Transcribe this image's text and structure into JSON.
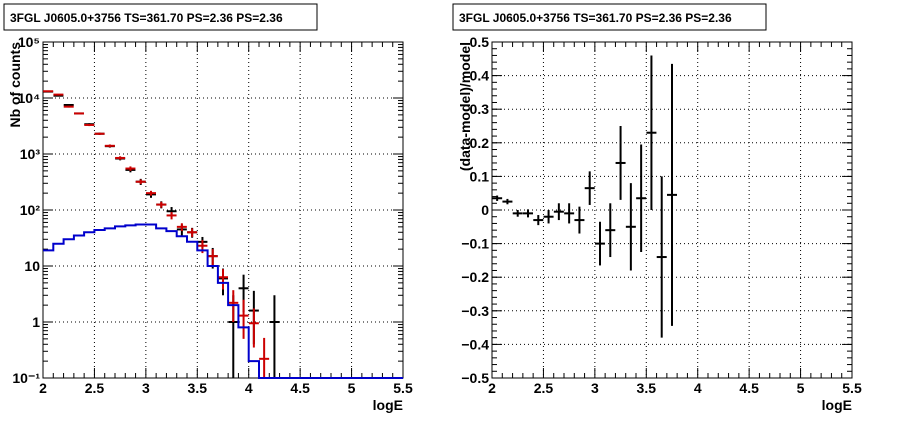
{
  "chart_data": [
    {
      "type": "line",
      "title": "3FGL J0605.0+3756 TS=361.70 PS=2.36 PS=2.36",
      "xlabel": "logE",
      "ylabel": "Nb of counts",
      "xlim": [
        2.0,
        5.5
      ],
      "ylim": [
        0.1,
        100000
      ],
      "yscale": "log",
      "grid": true,
      "x_ticks": [
        "2",
        "2.5",
        "3",
        "3.5",
        "4",
        "4.5",
        "5",
        "5.5"
      ],
      "y_ticks": [
        "10⁻¹",
        "1",
        "10",
        "10²",
        "10³",
        "10⁴",
        "10⁵"
      ],
      "series": [
        {
          "color": "#000000",
          "style": "errorbar",
          "x": [
            2.05,
            2.15,
            2.25,
            2.35,
            2.45,
            2.55,
            2.65,
            2.75,
            2.85,
            2.95,
            3.05,
            3.15,
            3.25,
            3.35,
            3.45,
            3.55,
            3.65,
            3.75,
            3.85,
            3.95,
            4.05,
            4.25
          ],
          "y": [
            13000,
            11000,
            7500,
            5300,
            3400,
            2300,
            1380,
            830,
            520,
            320,
            190,
            125,
            95,
            45,
            40,
            27,
            15,
            6,
            1,
            4,
            1.6,
            1
          ],
          "yerr_low": [
            400,
            300,
            250,
            200,
            150,
            100,
            80,
            60,
            50,
            40,
            25,
            18,
            18,
            10,
            8,
            6,
            6,
            3,
            0.9,
            2.5,
            1.2,
            0.9
          ],
          "yerr_high": [
            400,
            300,
            250,
            200,
            150,
            100,
            80,
            60,
            50,
            40,
            25,
            18,
            18,
            10,
            8,
            6,
            6,
            3,
            2,
            3,
            2,
            2
          ]
        },
        {
          "color": "#cc0000",
          "style": "errorbar",
          "x": [
            2.05,
            2.15,
            2.25,
            2.35,
            2.45,
            2.55,
            2.65,
            2.75,
            2.85,
            2.95,
            3.05,
            3.15,
            3.25,
            3.35,
            3.45,
            3.55,
            3.65,
            3.75,
            3.85,
            3.95,
            4.05,
            4.15
          ],
          "y": [
            13200,
            11500,
            7000,
            5300,
            3300,
            2300,
            1400,
            850,
            550,
            320,
            200,
            125,
            80,
            50,
            40,
            23,
            15,
            6.3,
            2.2,
            1.3,
            0.95,
            0.22
          ],
          "yerr_low": [
            350,
            300,
            250,
            200,
            150,
            100,
            80,
            60,
            50,
            30,
            20,
            15,
            12,
            8,
            7,
            6,
            5,
            2.5,
            1.2,
            0.8,
            0.6,
            0.15
          ],
          "yerr_high": [
            350,
            300,
            250,
            200,
            150,
            100,
            80,
            60,
            50,
            30,
            20,
            15,
            12,
            8,
            7,
            6,
            5,
            2.5,
            1.5,
            1.2,
            0.8,
            0.3
          ]
        },
        {
          "color": "#0000cc",
          "style": "step",
          "edges": [
            2.0,
            2.1,
            2.2,
            2.3,
            2.4,
            2.5,
            2.6,
            2.7,
            2.8,
            2.9,
            3.0,
            3.1,
            3.2,
            3.3,
            3.4,
            3.5,
            3.6,
            3.7,
            3.8,
            3.9,
            4.0,
            4.1,
            4.2,
            5.5
          ],
          "y": [
            19,
            25,
            30,
            35,
            40,
            44,
            47,
            51,
            53,
            55,
            55,
            47,
            42,
            34,
            27,
            19,
            10,
            5,
            2,
            0.8,
            0.2,
            0.1,
            0.1
          ]
        }
      ]
    },
    {
      "type": "scatter",
      "title": "3FGL J0605.0+3756 TS=361.70 PS=2.36 PS=2.36",
      "xlabel": "logE",
      "ylabel": "(data-model)/model",
      "xlim": [
        2.0,
        5.5
      ],
      "ylim": [
        -0.5,
        0.5
      ],
      "grid": true,
      "x_ticks": [
        "2",
        "2.5",
        "3",
        "3.5",
        "4",
        "4.5",
        "5",
        "5.5"
      ],
      "y_ticks": [
        "−0.5",
        "−0.4",
        "−0.3",
        "−0.2",
        "−0.1",
        "0",
        "0.1",
        "0.2",
        "0.3",
        "0.4",
        "0.5"
      ],
      "series": [
        {
          "color": "#000000",
          "style": "errorbar",
          "x": [
            2.05,
            2.15,
            2.25,
            2.35,
            2.45,
            2.55,
            2.65,
            2.75,
            2.85,
            2.95,
            3.05,
            3.15,
            3.25,
            3.35,
            3.45,
            3.55,
            3.65,
            3.75
          ],
          "y": [
            0.035,
            0.025,
            -0.01,
            -0.01,
            -0.03,
            -0.02,
            -0.005,
            -0.01,
            -0.03,
            0.065,
            -0.1,
            -0.06,
            0.14,
            -0.05,
            0.035,
            0.23,
            -0.14,
            0.045
          ],
          "yerr": [
            0.008,
            0.008,
            0.01,
            0.012,
            0.015,
            0.02,
            0.025,
            0.03,
            0.04,
            0.05,
            0.065,
            0.08,
            0.11,
            0.13,
            0.16,
            0.23,
            0.24,
            0.39
          ]
        }
      ]
    }
  ]
}
